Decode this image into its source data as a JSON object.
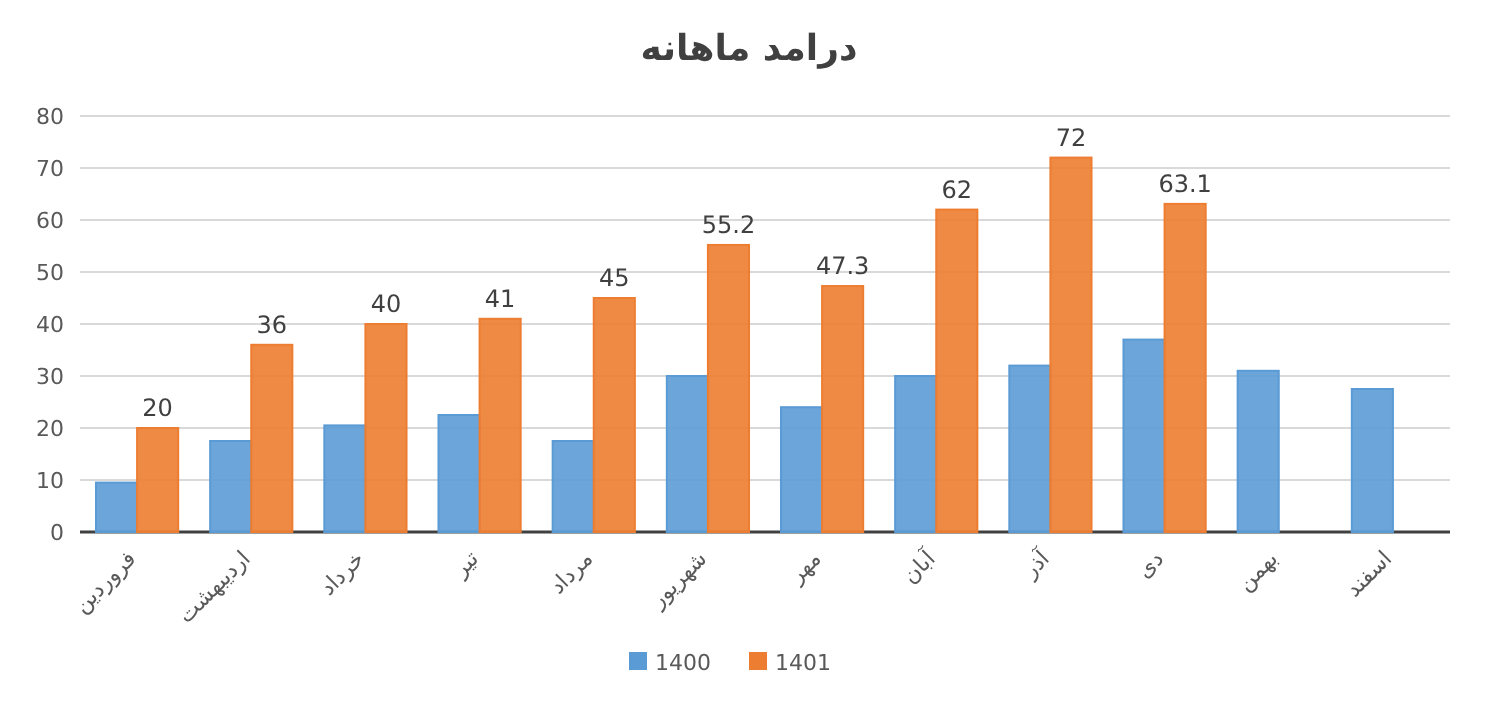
{
  "chart_data": {
    "type": "bar",
    "title": "درامد ماهانه",
    "categories": [
      "فروردین",
      "اردیبهشت",
      "خرداد",
      "تیر",
      "مرداد",
      "شهریور",
      "مهر",
      "آبان",
      "آذر",
      "دی",
      "بهمن",
      "اسفند"
    ],
    "series": [
      {
        "name": "1400",
        "color": "#5b9bd5",
        "values": [
          9.5,
          17.5,
          20.5,
          22.5,
          17.5,
          30,
          24,
          30,
          32,
          37,
          31,
          27.5
        ]
      },
      {
        "name": "1401",
        "color": "#ed7d31",
        "values": [
          20,
          36,
          40,
          41,
          45,
          55.2,
          47.3,
          62,
          72,
          63.1,
          null,
          null
        ],
        "value_labels": [
          "20",
          "36",
          "40",
          "41",
          "45",
          "55.2",
          "47.3",
          "62",
          "72",
          "63.1",
          null,
          null
        ]
      }
    ],
    "ylim": [
      0,
      80
    ],
    "yticks": [
      0,
      10,
      20,
      30,
      40,
      50,
      60,
      70,
      80
    ],
    "grid": "y",
    "legend": "bottom"
  }
}
